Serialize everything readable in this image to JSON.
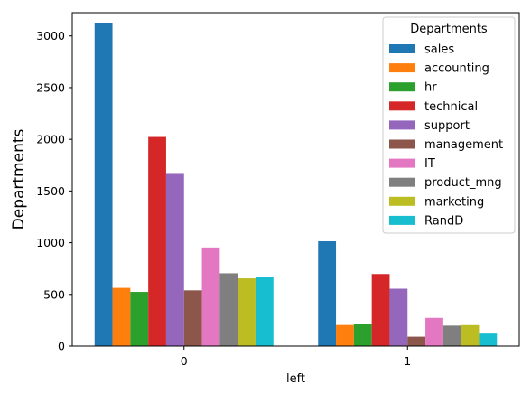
{
  "chart_data": {
    "type": "bar",
    "xlabel": "left",
    "ylabel": "Departments",
    "categories": [
      "0",
      "1"
    ],
    "ylim": [
      0,
      3225
    ],
    "yticks": [
      0,
      500,
      1000,
      1500,
      2000,
      2500,
      3000
    ],
    "grid": false,
    "legend": {
      "title": "Departments",
      "position": "top-right"
    },
    "series": [
      {
        "name": "sales",
        "color": "#1f77b4",
        "values": [
          3126,
          1014
        ]
      },
      {
        "name": "accounting",
        "color": "#ff7f0e",
        "values": [
          563,
          204
        ]
      },
      {
        "name": "hr",
        "color": "#2ca02c",
        "values": [
          524,
          215
        ]
      },
      {
        "name": "technical",
        "color": "#d62728",
        "values": [
          2023,
          697
        ]
      },
      {
        "name": "support",
        "color": "#9467bd",
        "values": [
          1674,
          555
        ]
      },
      {
        "name": "management",
        "color": "#8c564b",
        "values": [
          539,
          91
        ]
      },
      {
        "name": "IT",
        "color": "#e377c2",
        "values": [
          954,
          273
        ]
      },
      {
        "name": "product_mng",
        "color": "#7f7f7f",
        "values": [
          704,
          198
        ]
      },
      {
        "name": "marketing",
        "color": "#bcbd22",
        "values": [
          655,
          203
        ]
      },
      {
        "name": "RandD",
        "color": "#17becf",
        "values": [
          666,
          121
        ]
      }
    ]
  }
}
